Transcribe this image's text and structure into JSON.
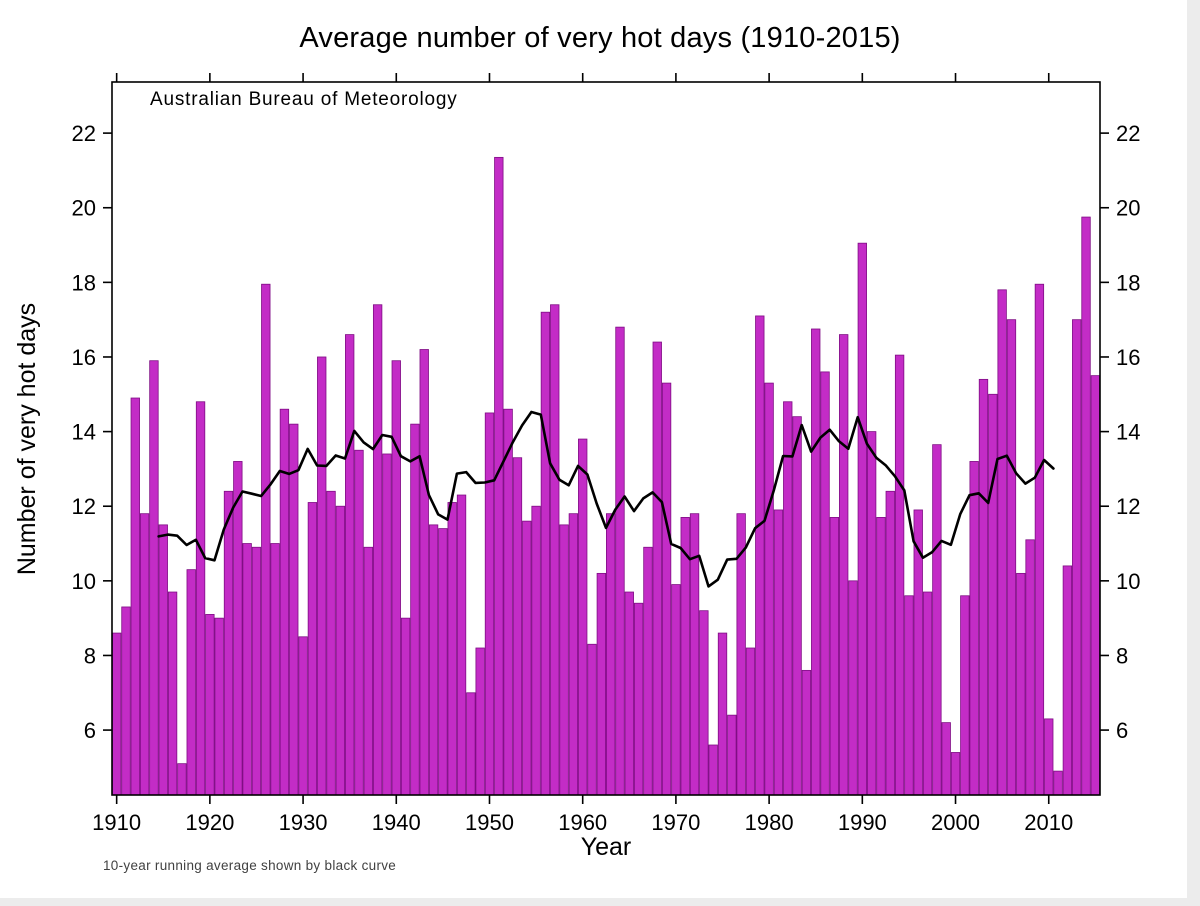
{
  "chart_data": {
    "type": "bar",
    "title": "Average number of very hot days (1910-2015)",
    "source_annotation": "Australian Bureau of Meteorology",
    "footnote": "10-year running average shown by black curve",
    "xlabel": "Year",
    "ylabel": "Number of very hot days",
    "x_ticks": [
      1910,
      1920,
      1930,
      1940,
      1950,
      1960,
      1970,
      1980,
      1990,
      2000,
      2010
    ],
    "y_ticks": [
      6,
      8,
      10,
      12,
      14,
      16,
      18,
      20,
      22
    ],
    "ylim": [
      4.26,
      23.37
    ],
    "xlim": [
      1910,
      2016
    ],
    "grid": false,
    "legend": "none",
    "bar_color": "#c32cc6",
    "bar_stroke": "#7f0d84",
    "line_color": "#000000",
    "running_average_window": 10,
    "years": [
      1910,
      1911,
      1912,
      1913,
      1914,
      1915,
      1916,
      1917,
      1918,
      1919,
      1920,
      1921,
      1922,
      1923,
      1924,
      1925,
      1926,
      1927,
      1928,
      1929,
      1930,
      1931,
      1932,
      1933,
      1934,
      1935,
      1936,
      1937,
      1938,
      1939,
      1940,
      1941,
      1942,
      1943,
      1944,
      1945,
      1946,
      1947,
      1948,
      1949,
      1950,
      1951,
      1952,
      1953,
      1954,
      1955,
      1956,
      1957,
      1958,
      1959,
      1960,
      1961,
      1962,
      1963,
      1964,
      1965,
      1966,
      1967,
      1968,
      1969,
      1970,
      1971,
      1972,
      1973,
      1974,
      1975,
      1976,
      1977,
      1978,
      1979,
      1980,
      1981,
      1982,
      1983,
      1984,
      1985,
      1986,
      1987,
      1988,
      1989,
      1990,
      1991,
      1992,
      1993,
      1994,
      1995,
      1996,
      1997,
      1998,
      1999,
      2000,
      2001,
      2002,
      2003,
      2004,
      2005,
      2006,
      2007,
      2008,
      2009,
      2010,
      2011,
      2012,
      2013,
      2014,
      2015
    ],
    "values": [
      8.6,
      9.3,
      14.9,
      11.8,
      15.9,
      11.5,
      9.7,
      5.1,
      10.3,
      14.8,
      9.1,
      9.0,
      12.4,
      13.2,
      11.0,
      10.9,
      17.95,
      11.0,
      14.6,
      14.2,
      8.5,
      12.1,
      16.0,
      12.4,
      12.0,
      16.6,
      13.5,
      10.9,
      17.4,
      13.4,
      15.9,
      9.0,
      14.2,
      16.2,
      11.5,
      11.4,
      12.1,
      12.3,
      7.0,
      8.2,
      14.5,
      21.35,
      14.6,
      13.3,
      11.6,
      12.0,
      17.2,
      17.4,
      11.5,
      11.8,
      13.8,
      8.3,
      10.2,
      11.8,
      16.8,
      9.7,
      9.4,
      10.9,
      16.4,
      15.3,
      9.9,
      11.7,
      11.8,
      9.2,
      5.6,
      8.6,
      6.4,
      11.8,
      8.2,
      17.1,
      15.3,
      11.9,
      14.8,
      14.4,
      7.6,
      16.75,
      15.6,
      11.7,
      16.6,
      10.0,
      19.05,
      14.0,
      11.7,
      12.4,
      16.05,
      9.6,
      11.9,
      9.7,
      13.65,
      6.2,
      5.4,
      9.6,
      13.2,
      15.4,
      15.0,
      17.8,
      17.0,
      10.2,
      11.1,
      17.95,
      6.3,
      4.9,
      10.4,
      17.0,
      19.75,
      15.5
    ]
  }
}
